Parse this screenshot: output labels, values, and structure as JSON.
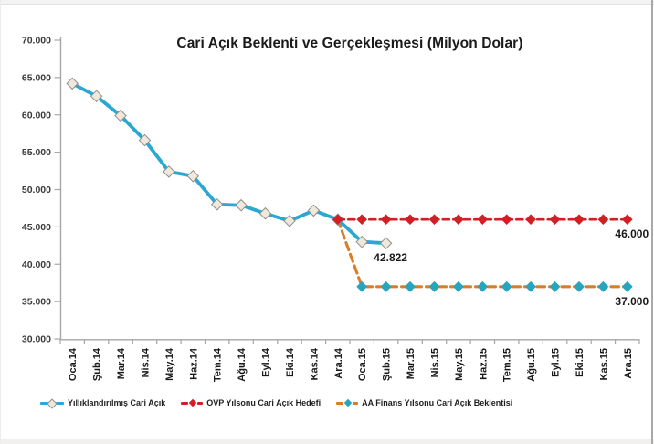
{
  "chart_data": {
    "type": "line",
    "title": "Cari Açık Beklenti ve Gerçekleşmesi (Milyon Dolar)",
    "unit": "Milyon Dolar",
    "grid": false,
    "legend_position": "bottom",
    "categories": [
      "Oca.14",
      "Şub.14",
      "Mar.14",
      "Nis.14",
      "May.14",
      "Haz.14",
      "Tem.14",
      "Ağu.14",
      "Eyl.14",
      "Eki.14",
      "Kas.14",
      "Ara.14",
      "Oca.15",
      "Şub.15",
      "Mar.15",
      "Nis.15",
      "May.15",
      "Haz.15",
      "Tem.15",
      "Ağu.15",
      "Eyl.15",
      "Eki.15",
      "Kas.15",
      "Ara.15"
    ],
    "y_axis": {
      "min": 30000,
      "max": 70000,
      "step": 5000,
      "tick_labels": [
        "70.000",
        "65.000",
        "60.000",
        "55.000",
        "50.000",
        "45.000",
        "40.000",
        "35.000",
        "30.000"
      ]
    },
    "series": [
      {
        "name": "Yıllıklandırılmış Cari Açık",
        "color": "#2BA7D3",
        "line_style": "solid",
        "marker": "diamond",
        "marker_fill": "#EFE8DB",
        "marker_stroke": "#8F8F8F",
        "values": [
          64200,
          62500,
          59900,
          56600,
          52400,
          51800,
          48000,
          47900,
          46800,
          45800,
          47200,
          46000,
          43000,
          42822,
          null,
          null,
          null,
          null,
          null,
          null,
          null,
          null,
          null,
          null
        ]
      },
      {
        "name": "OVP Yılsonu Cari Açık Hedefi",
        "color": "#D21F26",
        "line_style": "dashed",
        "marker": "diamond",
        "marker_fill": "#D21F26",
        "marker_stroke": "#D21F26",
        "values": [
          null,
          null,
          null,
          null,
          null,
          null,
          null,
          null,
          null,
          null,
          null,
          46000,
          46000,
          46000,
          46000,
          46000,
          46000,
          46000,
          46000,
          46000,
          46000,
          46000,
          46000,
          46000
        ]
      },
      {
        "name": "AA Finans Yılsonu Cari Açık Beklentisi",
        "color": "#D97E27",
        "line_style": "dashed",
        "marker": "diamond",
        "marker_fill": "#28A4BE",
        "marker_stroke": "#28A4BE",
        "values": [
          null,
          null,
          null,
          null,
          null,
          null,
          null,
          null,
          null,
          null,
          null,
          46000,
          37000,
          37000,
          37000,
          37000,
          37000,
          37000,
          37000,
          37000,
          37000,
          37000,
          37000,
          37000
        ]
      }
    ],
    "annotations": [
      {
        "text": "42.822",
        "category": "Şub.15",
        "value": 42822
      },
      {
        "text": "46.000",
        "category": "Ara.15",
        "value": 46000
      },
      {
        "text": "37.000",
        "category": "Ara.15",
        "value": 37000
      }
    ],
    "axis_color": "#A6A6A6",
    "tick_label_color": "#3a3a3a",
    "x_label_color": "#1a1a1a"
  }
}
